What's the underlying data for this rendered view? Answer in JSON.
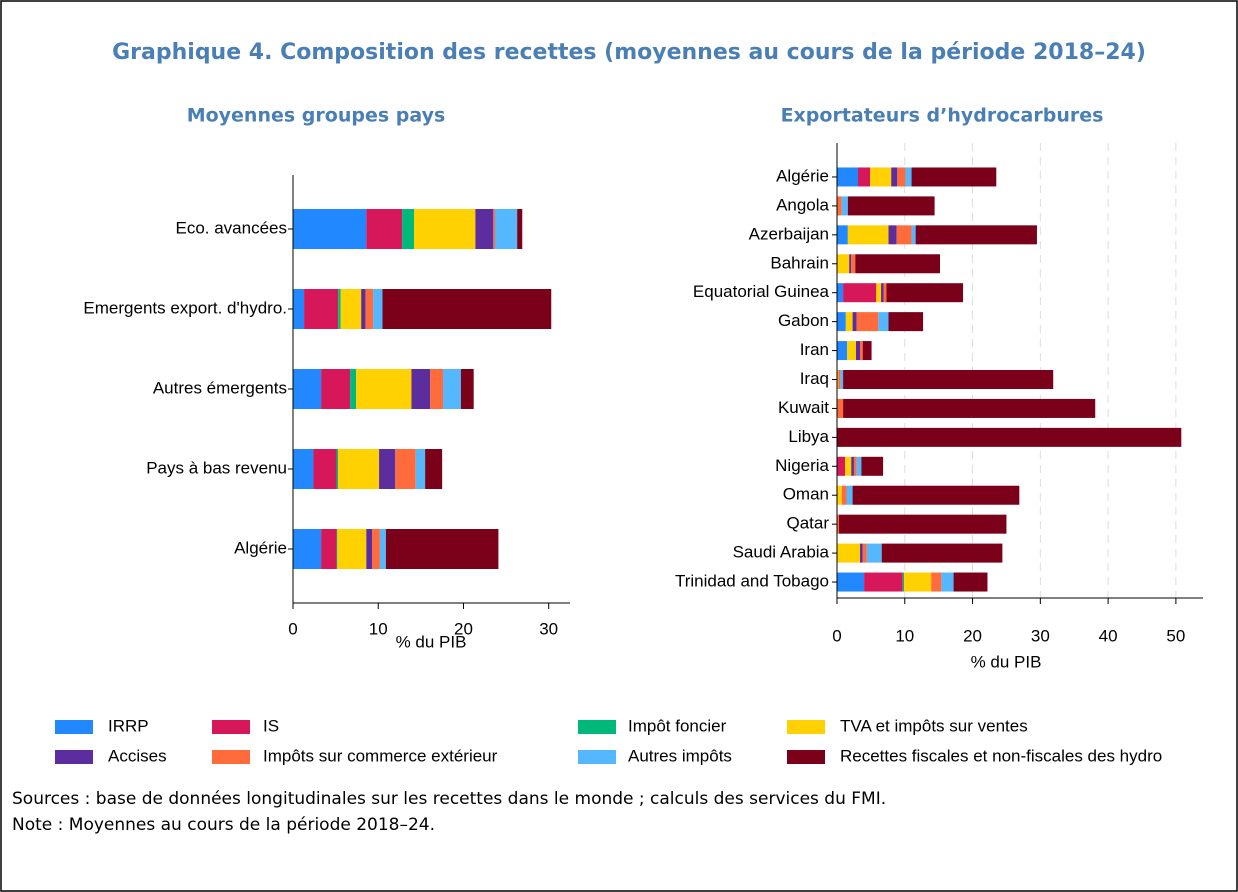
{
  "title": "Graphique 4. Composition des recettes (moyennes au cours de la période 2018–24)",
  "chart_data": [
    {
      "type": "bar",
      "orientation": "horizontal",
      "stacked": true,
      "grid": false,
      "title": "Moyennes groupes pays",
      "xlabel": "% du PIB",
      "categories": [
        "Eco. avancées",
        "Emergents export. d'hydro.",
        "Autres émergents",
        "Pays à bas revenu",
        "Algérie"
      ],
      "xlim": [
        0,
        32.5
      ],
      "xticks": [
        0,
        10,
        20,
        30
      ],
      "series": [
        {
          "name": "IRRP",
          "color": "#2188ff",
          "values": [
            8.6,
            1.3,
            3.3,
            2.4,
            3.3
          ]
        },
        {
          "name": "IS",
          "color": "#d6175a",
          "values": [
            4.2,
            4.0,
            3.4,
            2.7,
            1.8
          ]
        },
        {
          "name": "Impôt foncier",
          "color": "#00b87a",
          "values": [
            1.4,
            0.3,
            0.7,
            0.2,
            0.1
          ]
        },
        {
          "name": "TVA et impôts sur ventes",
          "color": "#ffd100",
          "values": [
            7.2,
            2.4,
            6.5,
            4.8,
            3.4
          ]
        },
        {
          "name": "Accises",
          "color": "#5b2d9e",
          "values": [
            2.1,
            0.5,
            2.2,
            1.9,
            0.7
          ]
        },
        {
          "name": "Impôts sur commerce extérieur",
          "color": "#ff6b3a",
          "values": [
            0.2,
            0.9,
            1.5,
            2.4,
            0.9
          ]
        },
        {
          "name": "Autres impôts",
          "color": "#55b8ff",
          "values": [
            2.6,
            1.1,
            2.1,
            1.1,
            0.7
          ]
        },
        {
          "name": "Recettes fiscales et non-fiscales des hydro",
          "color": "#7b0019",
          "values": [
            0.6,
            19.8,
            1.5,
            2.0,
            13.2
          ]
        }
      ]
    },
    {
      "type": "bar",
      "orientation": "horizontal",
      "stacked": true,
      "grid": true,
      "title": "Exportateurs d’hydrocarbures",
      "xlabel": "% du PIB",
      "categories": [
        "Algérie",
        "Angola",
        "Azerbaijan",
        "Bahrain",
        "Equatorial Guinea",
        "Gabon",
        "Iran",
        "Iraq",
        "Kuwait",
        "Libya",
        "Nigeria",
        "Oman",
        "Qatar",
        "Saudi Arabia",
        "Trinidad and Tobago"
      ],
      "xlim": [
        0,
        54
      ],
      "xticks": [
        0,
        10,
        20,
        30,
        40,
        50
      ],
      "series": [
        {
          "name": "IRRP",
          "color": "#2188ff",
          "values": [
            3.1,
            0,
            1.6,
            0,
            0.9,
            1.3,
            1.5,
            0,
            0,
            0,
            0,
            0,
            0,
            0,
            4.0
          ]
        },
        {
          "name": "IS",
          "color": "#d6175a",
          "values": [
            1.8,
            0,
            0,
            0,
            4.9,
            0,
            0,
            0,
            0,
            0,
            1.2,
            0,
            0,
            0,
            5.7
          ]
        },
        {
          "name": "Impôt foncier",
          "color": "#00b87a",
          "values": [
            0,
            0,
            0,
            0,
            0,
            0,
            0,
            0,
            0,
            0,
            0,
            0,
            0,
            0,
            0.2
          ]
        },
        {
          "name": "TVA et impôts sur ventes",
          "color": "#ffd100",
          "values": [
            3.1,
            0,
            6.0,
            1.8,
            0.7,
            1.0,
            1.3,
            0.2,
            0,
            0,
            0.9,
            0.7,
            0,
            3.4,
            4.0
          ]
        },
        {
          "name": "Accises",
          "color": "#5b2d9e",
          "values": [
            0.9,
            0,
            1.2,
            0.3,
            0.4,
            0.6,
            0.6,
            0,
            0,
            0,
            0.4,
            0,
            0,
            0.4,
            0
          ]
        },
        {
          "name": "Impôts sur commerce extérieur",
          "color": "#ff6b3a",
          "values": [
            1.2,
            0.7,
            2.2,
            0.6,
            0.4,
            3.2,
            0.4,
            0.3,
            0.9,
            0,
            0.4,
            0.7,
            0.3,
            0.6,
            1.5
          ]
        },
        {
          "name": "Autres impôts",
          "color": "#55b8ff",
          "values": [
            0.9,
            0.9,
            0.6,
            0,
            0,
            1.5,
            0,
            0.4,
            0,
            0,
            0.7,
            0.9,
            0,
            2.2,
            1.8
          ]
        },
        {
          "name": "Recettes fiscales et non-fiscales des hydro",
          "color": "#7b0019",
          "values": [
            12.5,
            12.8,
            17.9,
            12.5,
            11.3,
            5.1,
            1.3,
            31.0,
            37.2,
            50.8,
            3.2,
            24.6,
            24.7,
            17.8,
            5.0
          ]
        }
      ]
    }
  ],
  "notes": {
    "sources": "Sources : base de données longitudinales sur les recettes dans le monde ; calculs des services du FMI.",
    "note": "Note : Moyennes au cours de la période 2018–24."
  }
}
